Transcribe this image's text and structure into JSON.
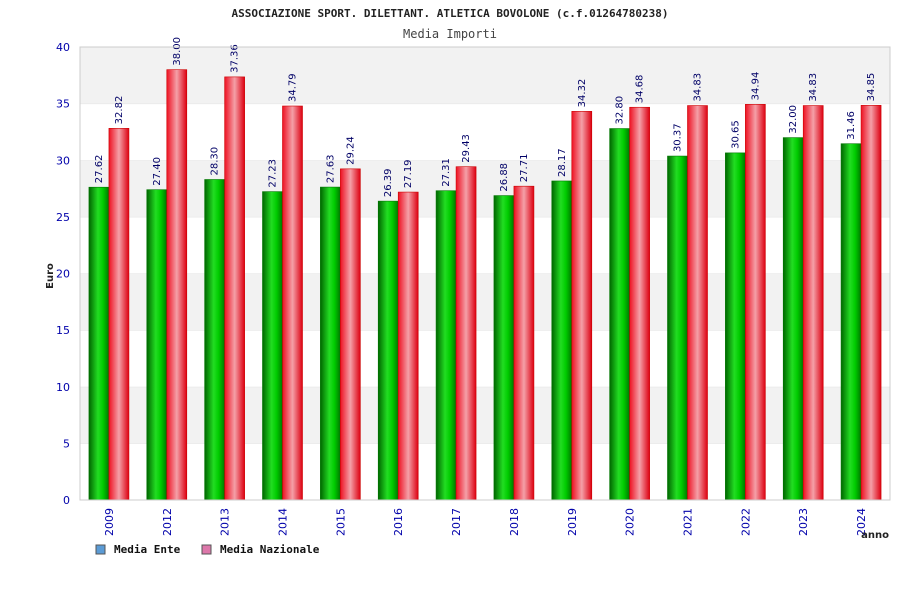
{
  "chart_data": {
    "type": "bar",
    "title": "ASSOCIAZIONE SPORT. DILETTANT. ATLETICA BOVOLONE (c.f.01264780238)",
    "subtitle": "Media Importi",
    "xlabel": "anno",
    "ylabel": "Euro",
    "ylim": [
      0,
      40
    ],
    "yticks": [
      0,
      5,
      10,
      15,
      20,
      25,
      30,
      35,
      40
    ],
    "grid": true,
    "categories": [
      "2009",
      "2012",
      "2013",
      "2014",
      "2015",
      "2016",
      "2017",
      "2018",
      "2019",
      "2020",
      "2021",
      "2022",
      "2023",
      "2024"
    ],
    "series": [
      {
        "name": "Media Ente",
        "color": "#00bb00",
        "legend_color": "#5b9bd5",
        "values": [
          27.62,
          27.4,
          28.3,
          27.23,
          27.63,
          26.39,
          27.31,
          26.88,
          28.17,
          32.8,
          30.37,
          30.65,
          32.0,
          31.46
        ],
        "labels": [
          "27.62",
          "27.40",
          "28.30",
          "27.23",
          "27.63",
          "26.39",
          "27.31",
          "26.88",
          "28.17",
          "32.80",
          "30.37",
          "30.65",
          "32.00",
          "31.46"
        ]
      },
      {
        "name": "Media Nazionale",
        "color": "#ee0000",
        "legend_color": "#dd77aa",
        "values": [
          32.82,
          38.0,
          37.36,
          34.79,
          29.24,
          27.19,
          29.43,
          27.71,
          34.32,
          34.68,
          34.83,
          34.94,
          34.83,
          34.85
        ],
        "labels": [
          "32.82",
          "38.00",
          "37.36",
          "34.79",
          "29.24",
          "27.19",
          "29.43",
          "27.71",
          "34.32",
          "34.68",
          "34.83",
          "34.94",
          "34.83",
          "34.85"
        ]
      }
    ],
    "legend_position": "bottom-left"
  }
}
